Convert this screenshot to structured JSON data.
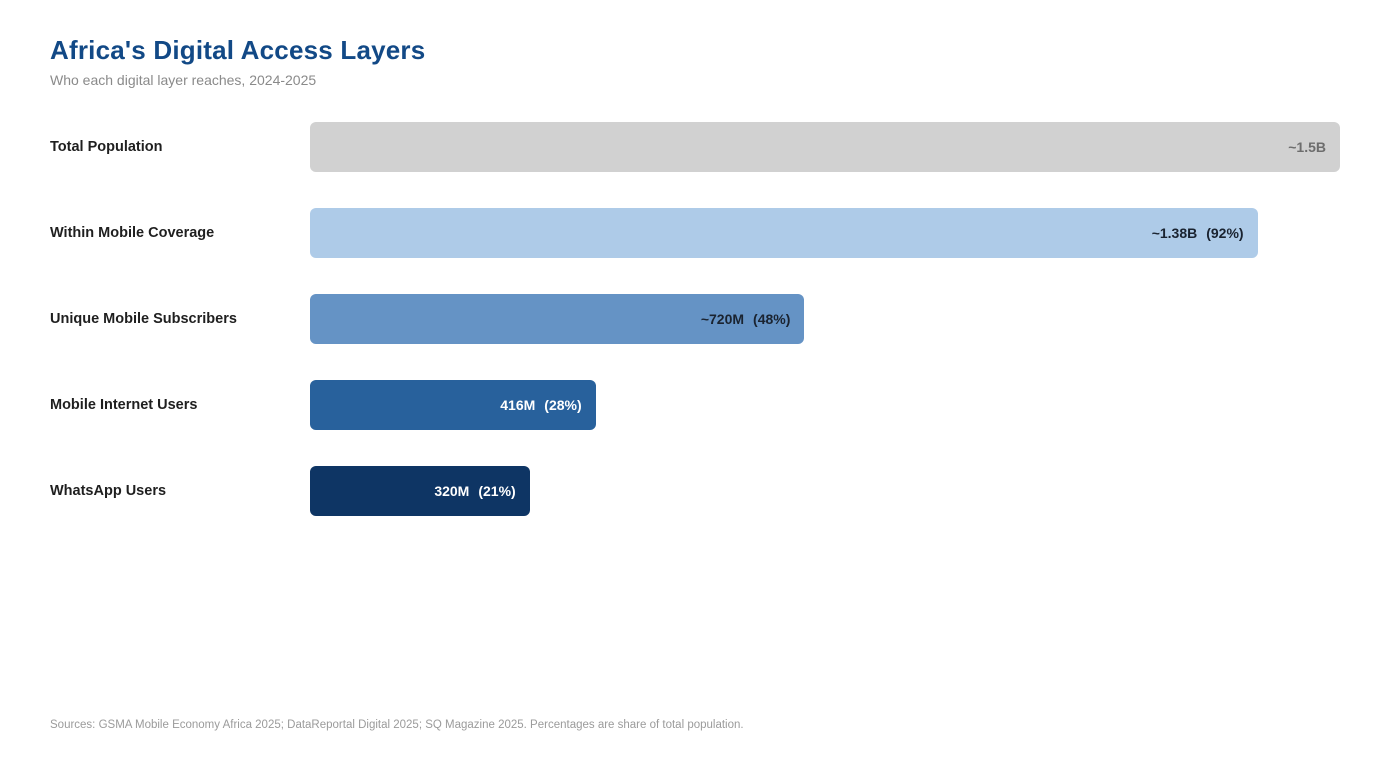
{
  "header": {
    "title": "Africa's Digital Access Layers",
    "subtitle": "Who each digital layer reaches, 2024-2025"
  },
  "footer": {
    "sources": "Sources: GSMA Mobile Economy Africa 2025; DataReportal Digital 2025; SQ Magazine 2025. Percentages are share of total population."
  },
  "colors": {
    "title": "#124986",
    "subtitle": "#8a8a8a",
    "row_label": "#1f1f1f",
    "footer": "#9b9b9b",
    "background": "#ffffff"
  },
  "chart_data": {
    "type": "bar",
    "orientation": "horizontal",
    "title": "Africa's Digital Access Layers",
    "subtitle": "Who each digital layer reaches, 2024-2025",
    "xlabel": "",
    "ylabel": "",
    "axis_visible": false,
    "grid": false,
    "legend": "none",
    "max_value_millions": 1500,
    "categories": [
      "Total Population",
      "Within Mobile Coverage",
      "Unique Mobile Subscribers",
      "Mobile Internet Users",
      "WhatsApp Users"
    ],
    "values_millions": [
      1500,
      1380,
      720,
      416,
      320
    ],
    "share_of_total_pct": [
      100,
      92,
      48,
      28,
      21
    ],
    "rows": [
      {
        "label": "Total Population",
        "value_label": "~1.5B",
        "pct_label": "",
        "value_millions": 1500,
        "share_pct": 100,
        "bar_color": "#d1d1d1",
        "text_color": "#6d6d6d"
      },
      {
        "label": "Within Mobile Coverage",
        "value_label": "~1.38B",
        "pct_label": "(92%)",
        "value_millions": 1380,
        "share_pct": 92,
        "bar_color": "#aecbe8",
        "text_color": "#1a2330"
      },
      {
        "label": "Unique Mobile Subscribers",
        "value_label": "~720M",
        "pct_label": "(48%)",
        "value_millions": 720,
        "share_pct": 48,
        "bar_color": "#6593c5",
        "text_color": "#1a2330"
      },
      {
        "label": "Mobile Internet Users",
        "value_label": "416M",
        "pct_label": "(28%)",
        "value_millions": 416,
        "share_pct": 28,
        "bar_color": "#28619c",
        "text_color": "#ffffff"
      },
      {
        "label": "WhatsApp Users",
        "value_label": "320M",
        "pct_label": "(21%)",
        "value_millions": 320,
        "share_pct": 21,
        "bar_color": "#0e3564",
        "text_color": "#ffffff"
      }
    ]
  }
}
